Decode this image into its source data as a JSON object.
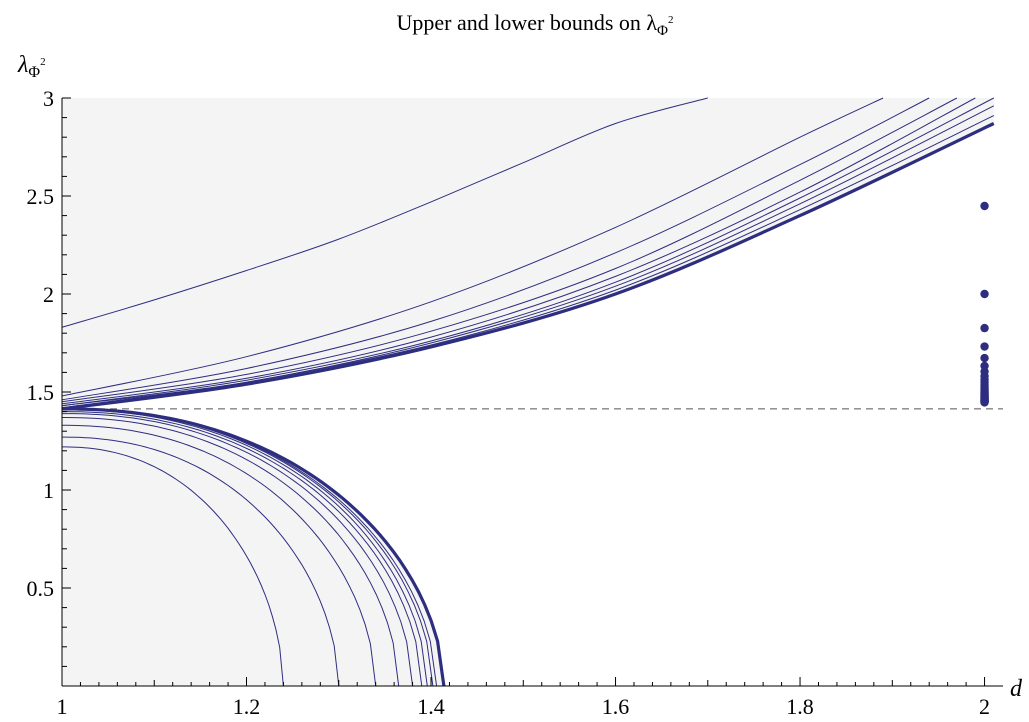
{
  "chart_data": {
    "type": "line",
    "title": "Upper and lower bounds on λ",
    "title_sub": "Φ",
    "title_sup": "2",
    "xlabel": "d",
    "ylabel": "λ",
    "ylabel_sub": "Φ",
    "ylabel_sup": "2",
    "xlim": [
      1,
      2.02
    ],
    "ylim": [
      0,
      3
    ],
    "x_ticks": [
      1,
      1.2,
      1.4,
      1.6,
      1.8,
      2
    ],
    "x_tick_labels": [
      "1",
      "1.2",
      "1.4",
      "1.6",
      "1.8",
      "2"
    ],
    "y_ticks": [
      0.5,
      1,
      1.5,
      2,
      2.5,
      3
    ],
    "y_tick_labels": [
      "0.5",
      "1",
      "1.5",
      "2",
      "2.5",
      "3"
    ],
    "reference_line": {
      "y": 1.414,
      "style": "dashed"
    },
    "line_color": "#2e2e80",
    "shade_color": "#f4f4f4",
    "upper_bounds": [
      {
        "x": [
          1,
          1.1,
          1.2,
          1.3,
          1.4,
          1.5,
          1.6,
          1.7
        ],
        "y": [
          1.83,
          1.97,
          2.12,
          2.28,
          2.47,
          2.67,
          2.87,
          3.0
        ]
      },
      {
        "x": [
          1,
          1.2,
          1.4,
          1.6,
          1.8,
          1.89
        ],
        "y": [
          1.48,
          1.68,
          1.96,
          2.34,
          2.8,
          3.0
        ]
      },
      {
        "x": [
          1,
          1.2,
          1.4,
          1.6,
          1.8,
          1.94
        ],
        "y": [
          1.46,
          1.62,
          1.86,
          2.21,
          2.66,
          3.0
        ]
      },
      {
        "x": [
          1,
          1.2,
          1.4,
          1.6,
          1.8,
          1.97
        ],
        "y": [
          1.45,
          1.59,
          1.81,
          2.13,
          2.58,
          3.0
        ]
      },
      {
        "x": [
          1,
          1.2,
          1.4,
          1.6,
          1.8,
          1.99
        ],
        "y": [
          1.44,
          1.57,
          1.78,
          2.09,
          2.52,
          3.0
        ]
      },
      {
        "x": [
          1,
          1.2,
          1.4,
          1.6,
          1.8,
          2.01
        ],
        "y": [
          1.43,
          1.56,
          1.76,
          2.06,
          2.49,
          3.0
        ]
      },
      {
        "x": [
          1,
          1.2,
          1.4,
          1.6,
          1.8,
          2.01
        ],
        "y": [
          1.43,
          1.55,
          1.75,
          2.04,
          2.46,
          2.96
        ]
      },
      {
        "x": [
          1,
          1.2,
          1.4,
          1.6,
          1.8,
          2.01
        ],
        "y": [
          1.42,
          1.55,
          1.74,
          2.02,
          2.43,
          2.91
        ]
      }
    ],
    "upper_bound_best": {
      "x": [
        1,
        1.2,
        1.4,
        1.6,
        1.8,
        2.01
      ],
      "y": [
        1.414,
        1.54,
        1.73,
        2.0,
        2.4,
        2.87
      ]
    },
    "lower_bounds": [
      {
        "x_end": 1.24,
        "y0": 1.22
      },
      {
        "x_end": 1.3,
        "y0": 1.27
      },
      {
        "x_end": 1.34,
        "y0": 1.33
      },
      {
        "x_end": 1.365,
        "y0": 1.37
      },
      {
        "x_end": 1.38,
        "y0": 1.39
      },
      {
        "x_end": 1.39,
        "y0": 1.4
      },
      {
        "x_end": 1.396,
        "y0": 1.41
      },
      {
        "x_end": 1.402,
        "y0": 1.414
      },
      {
        "x_end": 1.406,
        "y0": 1.414
      }
    ],
    "lower_bound_best": {
      "x_end": 1.414,
      "y0": 1.414
    },
    "scatter_points": {
      "x": 2,
      "y": [
        2.449,
        2.0,
        1.826,
        1.732,
        1.673,
        1.633,
        1.604,
        1.581,
        1.563,
        1.549,
        1.537,
        1.527,
        1.519,
        1.512,
        1.506,
        1.5,
        1.495,
        1.491,
        1.487,
        1.483,
        1.48,
        1.476,
        1.473,
        1.47,
        1.467,
        1.465,
        1.462,
        1.46,
        1.458,
        1.456,
        1.454,
        1.452,
        1.45,
        1.448,
        1.447
      ]
    }
  }
}
